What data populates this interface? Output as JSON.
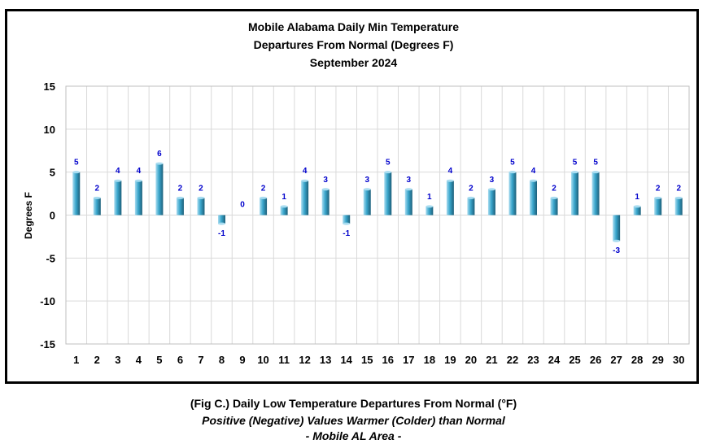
{
  "chart_data": {
    "type": "bar",
    "title_lines": [
      "Mobile Alabama Daily Min Temperature",
      "Departures From Normal (Degrees F)",
      "September 2024"
    ],
    "xlabel": "",
    "ylabel": "Degrees F",
    "categories": [
      "1",
      "2",
      "3",
      "4",
      "5",
      "6",
      "7",
      "8",
      "9",
      "10",
      "11",
      "12",
      "13",
      "14",
      "15",
      "16",
      "17",
      "18",
      "19",
      "20",
      "21",
      "22",
      "23",
      "24",
      "25",
      "26",
      "27",
      "28",
      "29",
      "30"
    ],
    "values": [
      5,
      2,
      4,
      4,
      6,
      2,
      2,
      -1,
      0,
      2,
      1,
      4,
      3,
      -1,
      3,
      5,
      3,
      1,
      4,
      2,
      3,
      5,
      4,
      2,
      5,
      5,
      -3,
      1,
      2,
      2
    ],
    "ylim": [
      -15,
      15
    ],
    "yticks": [
      15,
      10,
      5,
      0,
      -5,
      -10,
      -15
    ],
    "grid": true,
    "legend": "none",
    "colors": {
      "bar_light": "#a8dcf0",
      "bar_mid": "#3aa6cc",
      "bar_dark": "#1c5f7a",
      "label": "#0000cc",
      "grid": "#d9d9d9"
    }
  },
  "caption": {
    "line1": "(Fig C.) Daily Low Temperature Departures From Normal (°F)",
    "line2": "Positive (Negative) Values Warmer (Colder) than Normal",
    "line3": "- Mobile AL Area -"
  }
}
